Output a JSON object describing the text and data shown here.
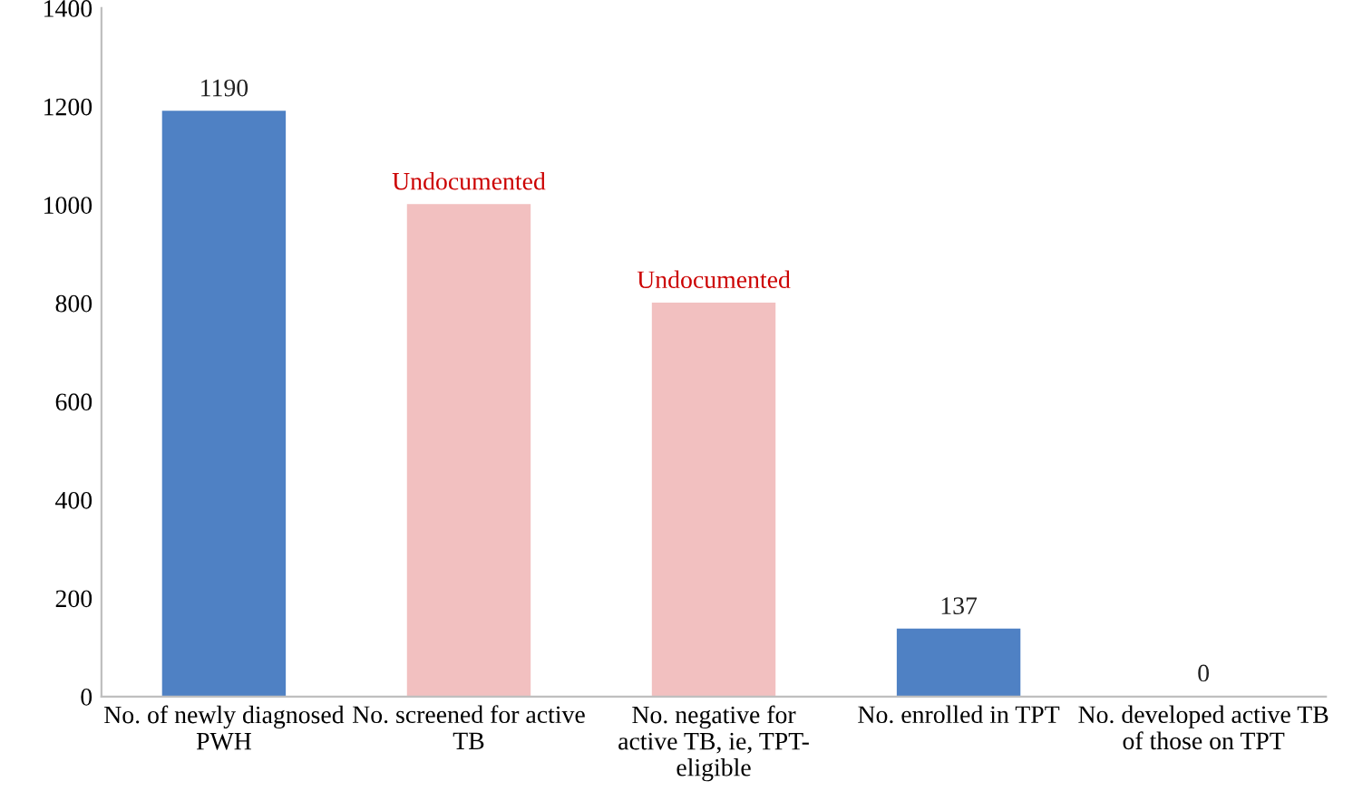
{
  "chart_data": {
    "type": "bar",
    "categories": [
      "No. of newly diagnosed\nPWH",
      "No. screened for active\nTB",
      "No. negative for\nactive TB, ie, TPT-\neligible",
      "No. enrolled in TPT",
      "No. developed active TB\nof those on TPT"
    ],
    "values": [
      1190,
      1000,
      800,
      137,
      0
    ],
    "colors": [
      "#4f81c4",
      "#f2c0c0",
      "#f2c0c0",
      "#4f81c4",
      "#4f81c4"
    ],
    "value_labels": [
      "1190",
      "Undocumented",
      "Undocumented",
      "137",
      "0"
    ],
    "ylim": [
      0,
      1400
    ],
    "yticks": [
      0,
      200,
      400,
      600,
      800,
      1000,
      1200,
      1400
    ],
    "grid": false
  }
}
